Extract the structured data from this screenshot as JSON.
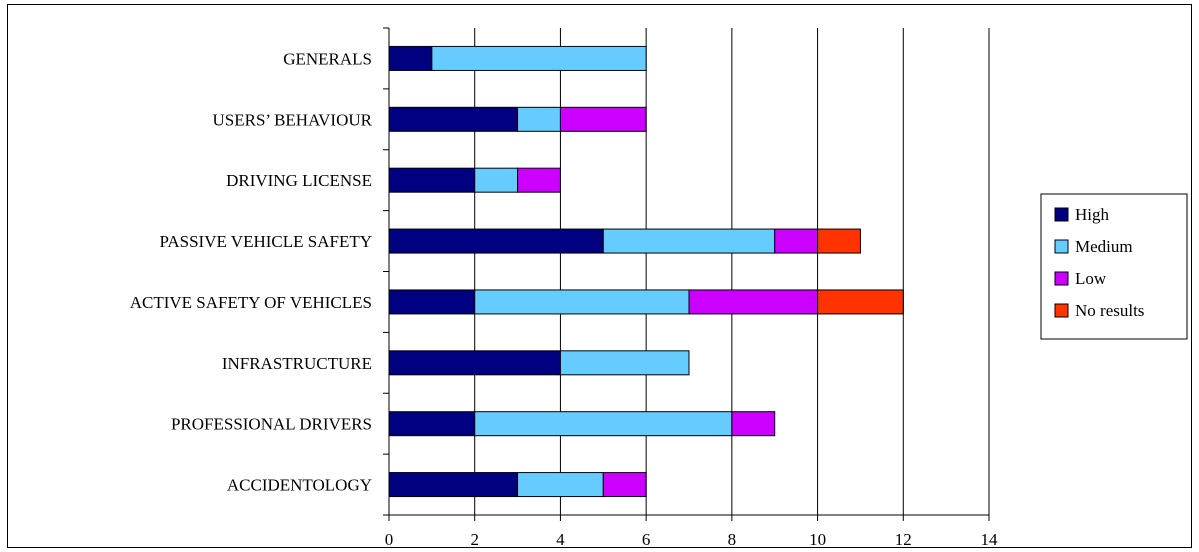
{
  "chart_data": {
    "type": "bar",
    "orientation": "horizontal",
    "stacked": true,
    "title": "",
    "xlabel": "",
    "ylabel": "",
    "categories": [
      "GENERALS",
      "USERS’ BEHAVIOUR",
      "DRIVING LICENSE",
      "PASSIVE VEHICLE SAFETY",
      "ACTIVE SAFETY OF VEHICLES",
      "INFRASTRUCTURE",
      "PROFESSIONAL DRIVERS",
      "ACCIDENTOLOGY"
    ],
    "series": [
      {
        "name": "High",
        "color": "#000080",
        "values": [
          1,
          3,
          2,
          5,
          2,
          4,
          2,
          3
        ]
      },
      {
        "name": "Medium",
        "color": "#66CCFF",
        "values": [
          5,
          1,
          1,
          4,
          5,
          3,
          6,
          2
        ]
      },
      {
        "name": "Low",
        "color": "#CC00FF",
        "values": [
          0,
          2,
          1,
          1,
          3,
          0,
          1,
          1
        ]
      },
      {
        "name": "No results",
        "color": "#FF3300",
        "values": [
          0,
          0,
          0,
          1,
          2,
          0,
          0,
          0
        ]
      }
    ],
    "xlim": [
      0,
      14
    ],
    "xticks": [
      0,
      2,
      4,
      6,
      8,
      10,
      12,
      14
    ],
    "grid": true,
    "legend_position": "right"
  }
}
